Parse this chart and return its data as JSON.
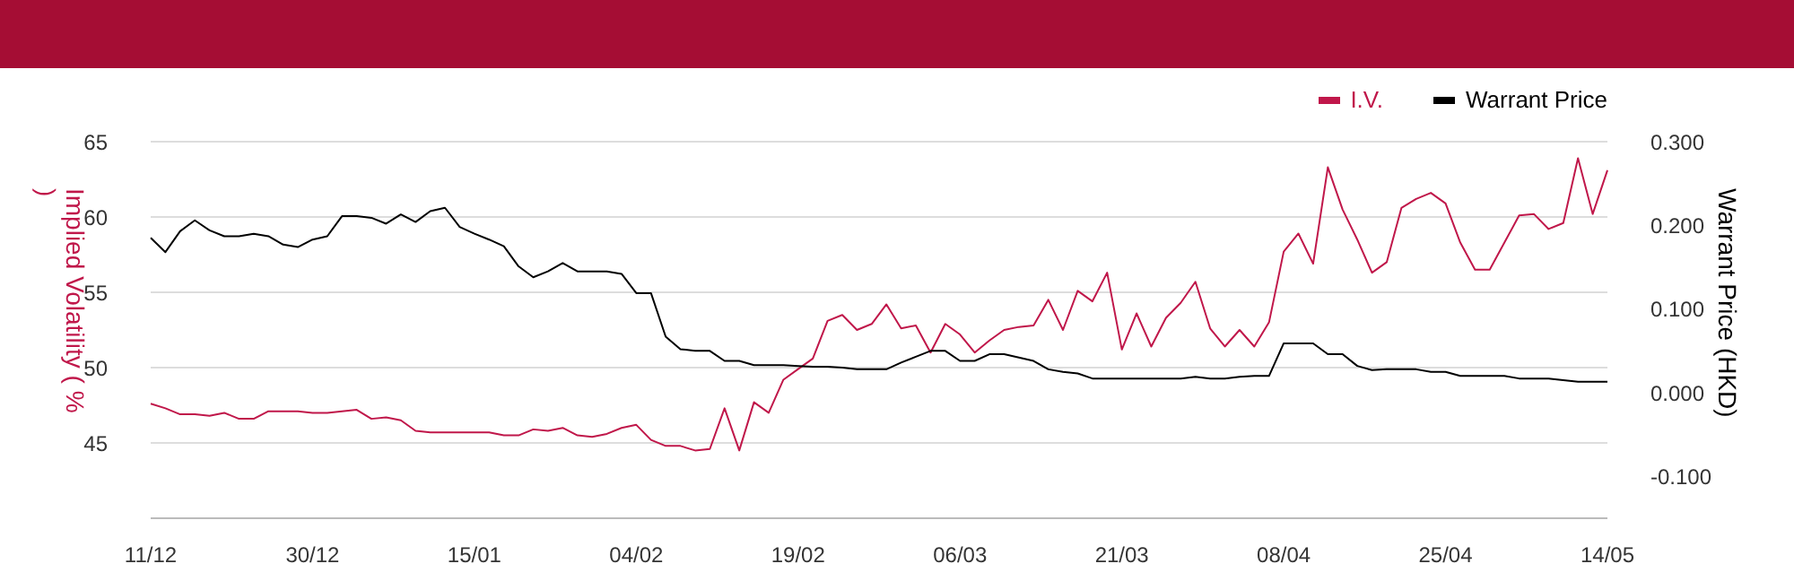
{
  "chart_data": {
    "type": "line",
    "categories": [
      "11/12",
      null,
      null,
      null,
      null,
      null,
      null,
      null,
      null,
      null,
      null,
      "30/12",
      null,
      null,
      null,
      null,
      null,
      null,
      null,
      null,
      null,
      null,
      "15/01",
      null,
      null,
      null,
      null,
      null,
      null,
      null,
      null,
      null,
      null,
      "04/02",
      null,
      null,
      null,
      null,
      null,
      null,
      null,
      null,
      null,
      null,
      "19/02",
      null,
      null,
      null,
      null,
      null,
      null,
      null,
      null,
      null,
      null,
      "06/03",
      null,
      null,
      null,
      null,
      null,
      null,
      null,
      null,
      null,
      null,
      "21/03",
      null,
      null,
      null,
      null,
      null,
      null,
      null,
      null,
      null,
      null,
      "08/04",
      null,
      null,
      null,
      null,
      null,
      null,
      null,
      null,
      null,
      null,
      "25/04",
      null,
      null,
      null,
      null,
      null,
      null,
      null,
      null,
      null,
      null,
      "14/05"
    ],
    "series": [
      {
        "name": "I.V.",
        "color": "#c0174a",
        "axis": "y",
        "values": [
          47.6,
          47.3,
          46.9,
          46.9,
          46.8,
          47.0,
          46.6,
          46.6,
          47.1,
          47.1,
          47.1,
          47.0,
          47.0,
          47.1,
          47.2,
          46.6,
          46.7,
          46.5,
          45.8,
          45.7,
          45.7,
          45.7,
          45.7,
          45.7,
          45.5,
          45.5,
          45.9,
          45.8,
          46.0,
          45.5,
          45.4,
          45.6,
          46.0,
          46.2,
          45.2,
          44.8,
          44.8,
          44.5,
          44.6,
          47.3,
          44.5,
          47.7,
          47.0,
          49.2,
          49.9,
          50.6,
          53.1,
          53.5,
          52.5,
          52.9,
          54.2,
          52.6,
          52.8,
          51.0,
          52.9,
          52.2,
          51.0,
          51.8,
          52.5,
          52.7,
          52.8,
          54.5,
          52.5,
          55.1,
          54.4,
          56.3,
          51.2,
          53.6,
          51.4,
          53.3,
          54.3,
          55.7,
          52.6,
          51.4,
          52.5,
          51.4,
          53.0,
          57.7,
          58.9,
          56.9,
          63.3,
          60.5,
          58.5,
          56.3,
          57.0,
          60.6,
          61.2,
          61.6,
          60.9,
          58.3,
          56.5,
          56.5,
          58.3,
          60.1,
          60.2,
          59.2,
          59.6,
          63.9,
          60.2,
          63.1
        ]
      },
      {
        "name": "Warrant Price",
        "color": "#000000",
        "axis": "y2",
        "values": [
          0.185,
          0.168,
          0.193,
          0.206,
          0.194,
          0.187,
          0.187,
          0.19,
          0.187,
          0.177,
          0.174,
          0.183,
          0.187,
          0.211,
          0.211,
          0.209,
          0.202,
          0.213,
          0.204,
          0.217,
          0.221,
          0.198,
          0.19,
          0.183,
          0.175,
          0.151,
          0.138,
          0.145,
          0.155,
          0.145,
          0.145,
          0.145,
          0.142,
          0.119,
          0.119,
          0.067,
          0.052,
          0.05,
          0.05,
          0.038,
          0.038,
          0.033,
          0.033,
          0.033,
          0.032,
          0.031,
          0.031,
          0.03,
          0.028,
          0.028,
          0.028,
          0.036,
          0.043,
          0.05,
          0.05,
          0.038,
          0.038,
          0.046,
          0.046,
          0.042,
          0.038,
          0.028,
          0.025,
          0.023,
          0.017,
          0.017,
          0.017,
          0.017,
          0.017,
          0.017,
          0.017,
          0.019,
          0.017,
          0.017,
          0.019,
          0.02,
          0.02,
          0.059,
          0.059,
          0.059,
          0.046,
          0.046,
          0.032,
          0.027,
          0.028,
          0.028,
          0.028,
          0.025,
          0.025,
          0.02,
          0.02,
          0.02,
          0.02,
          0.017,
          0.017,
          0.017,
          0.015,
          0.013,
          0.013,
          0.013
        ]
      }
    ],
    "ylabel": "Implied Volatility ( % )",
    "y2label": "Warrant Price (HKD)",
    "ylim": [
      40,
      65
    ],
    "yticks": [
      45,
      50,
      55,
      60,
      65
    ],
    "y2lim": [
      -0.15,
      0.3
    ],
    "y2ticks": [
      {
        "value": -0.1,
        "label": "-0.100"
      },
      {
        "value": 0,
        "label": "0.000"
      },
      {
        "value": 0.1,
        "label": "0.100"
      },
      {
        "value": 0.2,
        "label": "0.200"
      },
      {
        "value": 0.3,
        "label": "0.300"
      }
    ],
    "grid": "y",
    "legend": "top right",
    "line_style": "solid"
  }
}
